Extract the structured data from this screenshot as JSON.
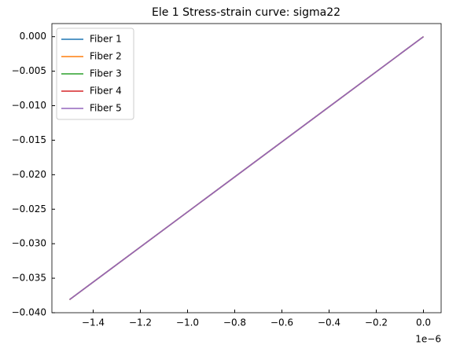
{
  "chart_data": {
    "type": "line",
    "title": "Ele 1 Stress-strain curve: sigma22",
    "x": [
      -1.5e-06,
      0
    ],
    "x_offset_label": "1e−6",
    "series": [
      {
        "name": "Fiber 1",
        "color": "#1f77b4",
        "values": [
          -0.0381,
          0
        ]
      },
      {
        "name": "Fiber 2",
        "color": "#ff7f0e",
        "values": [
          -0.0381,
          0
        ]
      },
      {
        "name": "Fiber 3",
        "color": "#2ca02c",
        "values": [
          -0.0381,
          0
        ]
      },
      {
        "name": "Fiber 4",
        "color": "#d62728",
        "values": [
          -0.0381,
          0
        ]
      },
      {
        "name": "Fiber 5",
        "color": "#9467bd",
        "values": [
          -0.0381,
          0
        ]
      }
    ],
    "xlim": [
      -1.575e-06,
      7.5e-08
    ],
    "xticks": [
      {
        "value": -1.4e-06,
        "label": "−1.4"
      },
      {
        "value": -1.2e-06,
        "label": "−1.2"
      },
      {
        "value": -1e-06,
        "label": "−1.0"
      },
      {
        "value": -8e-07,
        "label": "−0.8"
      },
      {
        "value": -6e-07,
        "label": "−0.6"
      },
      {
        "value": -4e-07,
        "label": "−0.4"
      },
      {
        "value": -2e-07,
        "label": "−0.2"
      },
      {
        "value": 0,
        "label": "0.0"
      }
    ],
    "ylim": [
      -0.04,
      0.0019
    ],
    "yticks": [
      {
        "value": 0,
        "label": "0.000"
      },
      {
        "value": -0.005,
        "label": "−0.005"
      },
      {
        "value": -0.01,
        "label": "−0.010"
      },
      {
        "value": -0.015,
        "label": "−0.015"
      },
      {
        "value": -0.02,
        "label": "−0.020"
      },
      {
        "value": -0.025,
        "label": "−0.025"
      },
      {
        "value": -0.03,
        "label": "−0.030"
      },
      {
        "value": -0.035,
        "label": "−0.035"
      },
      {
        "value": -0.04,
        "label": "−0.040"
      }
    ],
    "tick_direction": "in",
    "legend": "upper-left"
  }
}
